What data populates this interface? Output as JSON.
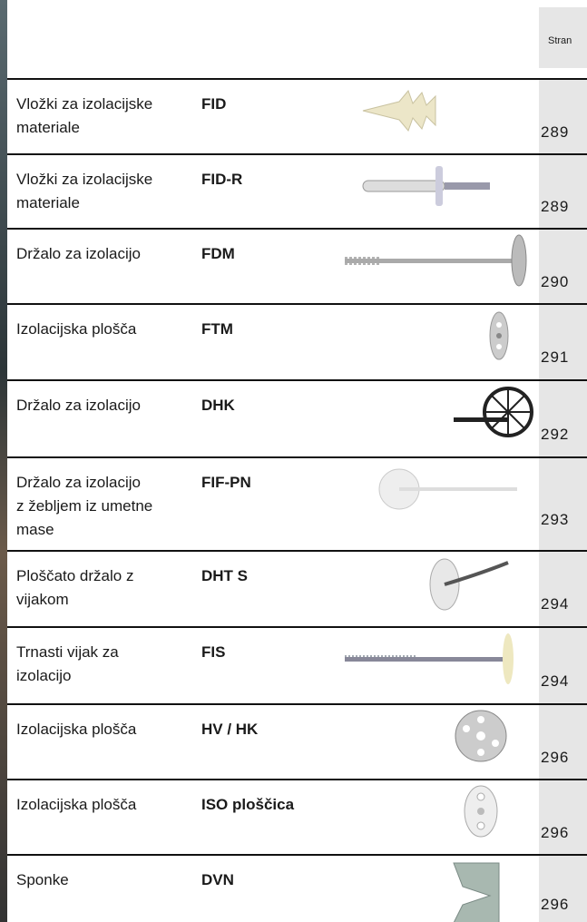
{
  "header": {
    "page_label": "Stran"
  },
  "rows": [
    {
      "description": [
        "Vložki za izolacijske",
        "materiale"
      ],
      "product": "FID",
      "page": "289"
    },
    {
      "description": [
        "Vložki za izolacijske",
        "materiale"
      ],
      "product": "FID-R",
      "page": "289"
    },
    {
      "description": [
        "Držalo za izolacijo"
      ],
      "product": "FDM",
      "page": "290"
    },
    {
      "description": [
        "Izolacijska plošča"
      ],
      "product": "FTM",
      "page": "291"
    },
    {
      "description": [
        "Držalo za izolacijo"
      ],
      "product": "DHK",
      "page": "292"
    },
    {
      "description": [
        "Držalo za izolacijo",
        "z žebljem iz umetne",
        "mase"
      ],
      "product": "FIF-PN",
      "page": "293"
    },
    {
      "description": [
        "Ploščato držalo z",
        "vijakom"
      ],
      "product": "DHT S",
      "page": "294"
    },
    {
      "description": [
        "Trnasti vijak za",
        "izolacijo"
      ],
      "product": "FIS",
      "page": "294"
    },
    {
      "description": [
        "Izolacijska plošča"
      ],
      "product": "HV / HK",
      "page": "296"
    },
    {
      "description": [
        "Izolacijska plošča"
      ],
      "product": "ISO ploščica",
      "page": "296"
    },
    {
      "description": [
        "Sponke"
      ],
      "product": "DVN",
      "page": "296"
    }
  ]
}
